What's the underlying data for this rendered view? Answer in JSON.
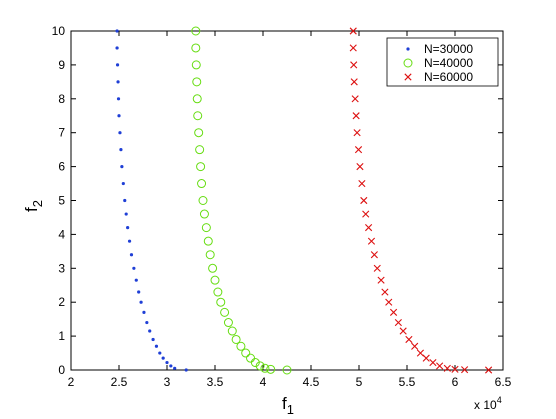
{
  "chart_data": {
    "type": "scatter",
    "xlabel": {
      "main": "f",
      "sub": "1"
    },
    "ylabel": {
      "main": "f",
      "sub": "2"
    },
    "x_multiplier": {
      "base": "x 10",
      "exp": "4"
    },
    "xlim": [
      2,
      6.5
    ],
    "ylim": [
      0,
      10
    ],
    "x_ticks": [
      "2",
      "2.5",
      "3",
      "3.5",
      "4",
      "4.5",
      "5",
      "5.5",
      "6",
      "6.5"
    ],
    "y_ticks": [
      "0",
      "1",
      "2",
      "3",
      "4",
      "5",
      "6",
      "7",
      "8",
      "9",
      "10"
    ],
    "grid": false,
    "legend_position": "top-right",
    "series": [
      {
        "name": "N=30000",
        "marker": "dot",
        "color": "#1f3fd6",
        "x": [
          2.48,
          2.48,
          2.485,
          2.49,
          2.495,
          2.5,
          2.51,
          2.52,
          2.53,
          2.545,
          2.56,
          2.575,
          2.59,
          2.61,
          2.63,
          2.655,
          2.68,
          2.705,
          2.73,
          2.76,
          2.79,
          2.82,
          2.855,
          2.89,
          2.925,
          2.96,
          3.0,
          3.04,
          3.08,
          3.2
        ],
        "y": [
          10.0,
          9.5,
          9.0,
          8.5,
          8.0,
          7.5,
          7.0,
          6.5,
          6.0,
          5.5,
          5.0,
          4.6,
          4.2,
          3.8,
          3.4,
          3.0,
          2.65,
          2.3,
          2.0,
          1.7,
          1.4,
          1.15,
          0.9,
          0.7,
          0.5,
          0.35,
          0.22,
          0.12,
          0.05,
          0.0
        ]
      },
      {
        "name": "N=40000",
        "marker": "circle",
        "color": "#66dd11",
        "x": [
          3.3,
          3.3,
          3.305,
          3.31,
          3.315,
          3.32,
          3.33,
          3.34,
          3.35,
          3.36,
          3.375,
          3.39,
          3.41,
          3.43,
          3.45,
          3.475,
          3.5,
          3.53,
          3.56,
          3.6,
          3.64,
          3.68,
          3.72,
          3.77,
          3.82,
          3.87,
          3.92,
          3.97,
          4.02,
          4.08,
          4.25
        ],
        "y": [
          10.0,
          9.5,
          9.0,
          8.5,
          8.0,
          7.5,
          7.0,
          6.5,
          6.0,
          5.5,
          5.0,
          4.6,
          4.2,
          3.8,
          3.4,
          3.0,
          2.65,
          2.3,
          2.0,
          1.7,
          1.4,
          1.15,
          0.9,
          0.7,
          0.5,
          0.35,
          0.22,
          0.12,
          0.05,
          0.02,
          0.0
        ]
      },
      {
        "name": "N=60000",
        "marker": "x",
        "color": "#dd1111",
        "x": [
          4.94,
          4.94,
          4.945,
          4.95,
          4.96,
          4.97,
          4.98,
          4.995,
          5.01,
          5.03,
          5.05,
          5.07,
          5.1,
          5.13,
          5.16,
          5.19,
          5.23,
          5.27,
          5.31,
          5.36,
          5.41,
          5.46,
          5.52,
          5.58,
          5.64,
          5.7,
          5.77,
          5.84,
          5.92,
          6.0,
          6.1,
          6.35
        ],
        "y": [
          10.0,
          9.5,
          9.0,
          8.5,
          8.0,
          7.5,
          7.0,
          6.5,
          6.0,
          5.5,
          5.0,
          4.6,
          4.2,
          3.8,
          3.4,
          3.0,
          2.65,
          2.3,
          2.0,
          1.7,
          1.4,
          1.15,
          0.9,
          0.7,
          0.5,
          0.35,
          0.22,
          0.12,
          0.05,
          0.02,
          0.01,
          0.0
        ]
      }
    ]
  }
}
